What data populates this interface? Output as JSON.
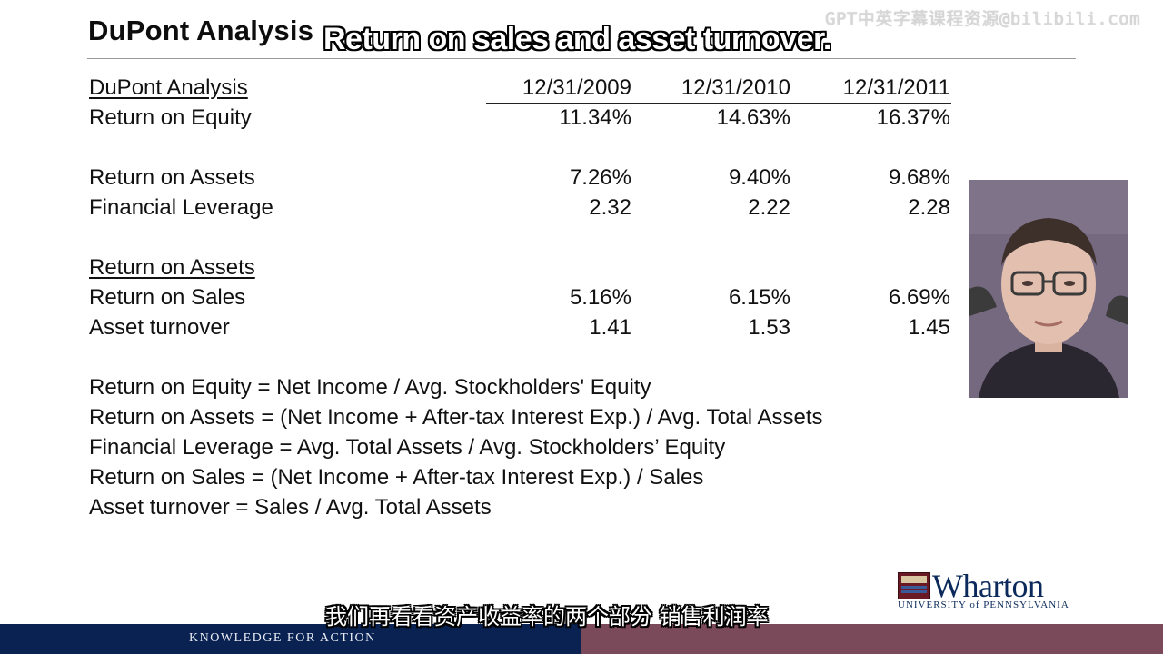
{
  "slide": {
    "title": "DuPont Analysis",
    "caption_top": "Return on sales and asset turnover.",
    "watermark": "GPT中英字幕课程资源@bilibili.com"
  },
  "table": {
    "header": {
      "label": "DuPont Analysis",
      "dates": [
        "12/31/2009",
        "12/31/2010",
        "12/31/2011"
      ]
    },
    "rows": [
      {
        "label": "Return on Equity",
        "values": [
          "11.34%",
          "14.63%",
          "16.37%"
        ]
      },
      {
        "label": "Return on Assets",
        "values": [
          "7.26%",
          "9.40%",
          "9.68%"
        ]
      },
      {
        "label": "Financial Leverage",
        "values": [
          "2.32",
          "2.22",
          "2.28"
        ]
      },
      {
        "label": "Return on Assets",
        "values": [
          "",
          "",
          ""
        ]
      },
      {
        "label": "Return on Sales",
        "values": [
          "5.16%",
          "6.15%",
          "6.69%"
        ]
      },
      {
        "label": "Asset turnover",
        "values": [
          "1.41",
          "1.53",
          "1.45"
        ]
      }
    ]
  },
  "formulas": [
    "Return on Equity = Net Income / Avg. Stockholders' Equity",
    "Return on Assets = (Net Income + After-tax Interest Exp.) / Avg. Total Assets",
    "Financial Leverage = Avg. Total Assets / Avg. Stockholders’ Equity",
    "Return on Sales =  (Net Income + After-tax Interest Exp.) / Sales",
    "Asset turnover = Sales / Avg. Total Assets"
  ],
  "logo": {
    "word": "Wharton",
    "subtitle": "UNIVERSITY of PENNSYLVANIA"
  },
  "footer": {
    "tagline": "KNOWLEDGE FOR ACTION",
    "left_color": "#0a2252",
    "right_color": "#7a4a5a"
  },
  "subtitle_cn": "我们再看看资产收益率的两个部分 销售利润率"
}
